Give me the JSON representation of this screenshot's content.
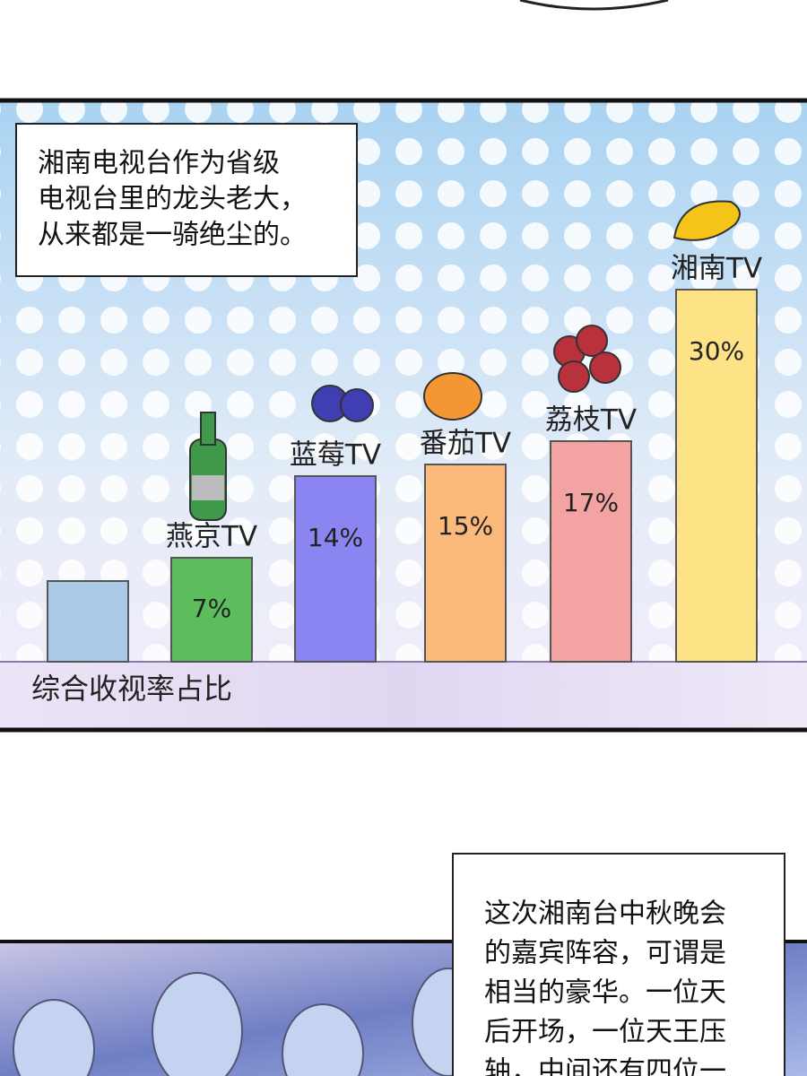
{
  "chart_data": {
    "type": "bar",
    "categories": [
      null,
      "燕京TV",
      "蓝莓TV",
      "番茄TV",
      "荔枝TV",
      "湘南TV"
    ],
    "values": [
      5,
      7,
      14,
      15,
      17,
      30
    ],
    "value_labels": [
      null,
      "7%",
      "14%",
      "15%",
      "17%",
      "30%"
    ],
    "colors": [
      "#a9c9e6",
      "#5dbd5c",
      "#8b85f2",
      "#fcb97c",
      "#f4a3a3",
      "#fde386"
    ],
    "xlabel": "综合收视率占比"
  },
  "captions": [
    {
      "lines": [
        "湘南电视台作为省级",
        "电视台里的龙头老大，",
        "从来都是一骑绝尘的。"
      ]
    },
    {
      "lines": [
        "这次湘南台中秋晚会",
        "的嘉宾阵容，可谓是",
        "相当的豪华。一位天",
        "后开场，一位天王压",
        "轴，中间还有四位一"
      ]
    }
  ]
}
